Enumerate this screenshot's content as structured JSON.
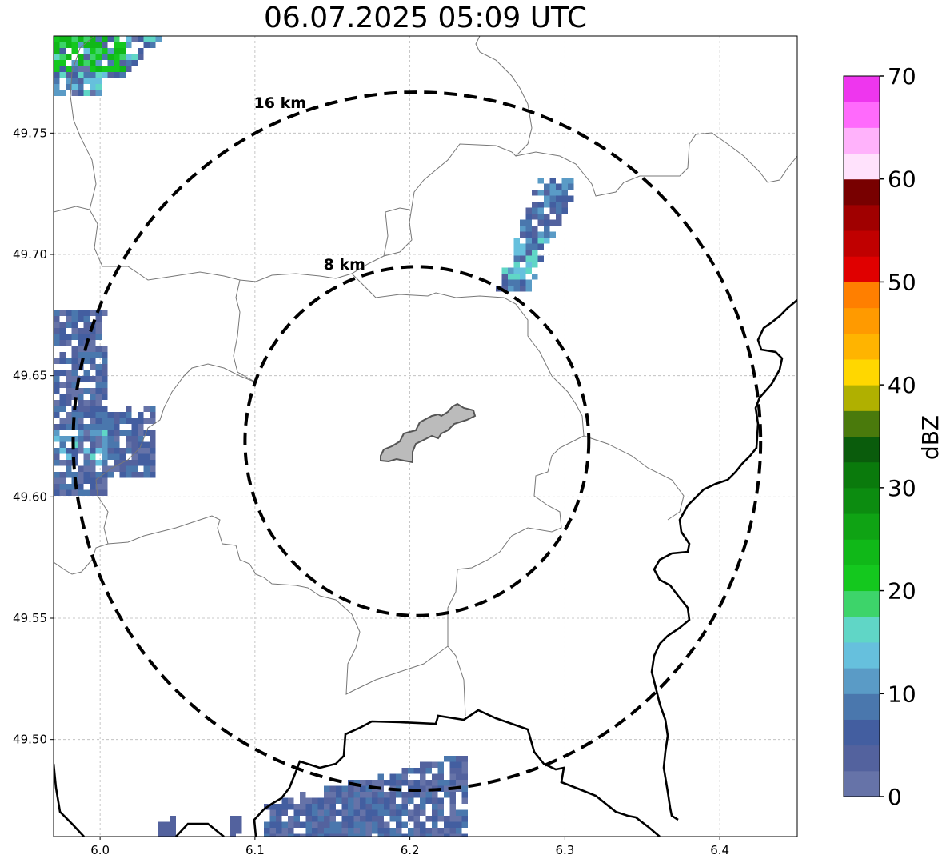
{
  "title": "06.07.2025 05:09 UTC",
  "map": {
    "lon_range": [
      5.97,
      6.45
    ],
    "lat_range": [
      49.46,
      49.79
    ],
    "lon_ticks": [
      {
        "value": 6.0,
        "label": "6.0"
      },
      {
        "value": 6.1,
        "label": "6.1"
      },
      {
        "value": 6.2,
        "label": "6.2"
      },
      {
        "value": 6.3,
        "label": "6.3"
      },
      {
        "value": 6.4,
        "label": "6.4"
      }
    ],
    "lat_ticks": [
      {
        "value": 49.5,
        "label": "49.50"
      },
      {
        "value": 49.55,
        "label": "49.55"
      },
      {
        "value": 49.6,
        "label": "49.60"
      },
      {
        "value": 49.65,
        "label": "49.65"
      },
      {
        "value": 49.7,
        "label": "49.70"
      },
      {
        "value": 49.75,
        "label": "49.75"
      }
    ],
    "gridlines": true,
    "range_rings": [
      {
        "radius_km": 8,
        "label": "8 km"
      },
      {
        "radius_km": 16,
        "label": "16 km"
      }
    ],
    "center": {
      "lon": 6.2045,
      "lat": 49.623
    }
  },
  "colorbar": {
    "label": "dBZ",
    "min": 0,
    "max": 70,
    "ticks": [
      {
        "value": 0,
        "label": "0"
      },
      {
        "value": 10,
        "label": "10"
      },
      {
        "value": 20,
        "label": "20"
      },
      {
        "value": 30,
        "label": "30"
      },
      {
        "value": 40,
        "label": "40"
      },
      {
        "value": 50,
        "label": "50"
      },
      {
        "value": 60,
        "label": "60"
      },
      {
        "value": 70,
        "label": "70"
      }
    ],
    "colors": [
      "#6673a8",
      "#53629e",
      "#435ea0",
      "#4a77ad",
      "#5a9bc6",
      "#66c0dd",
      "#60d6c6",
      "#3dd46a",
      "#14c81e",
      "#10b818",
      "#0fa314",
      "#0c8c10",
      "#0a7a0c",
      "#0a5c0c",
      "#4a7a0c",
      "#b0b000",
      "#ffd700",
      "#ffb400",
      "#ff9a00",
      "#ff7f00",
      "#e00000",
      "#c00000",
      "#a00000",
      "#780000",
      "#ffe2fc",
      "#ffb2fb",
      "#ff6afc",
      "#ee36ee"
    ]
  }
}
